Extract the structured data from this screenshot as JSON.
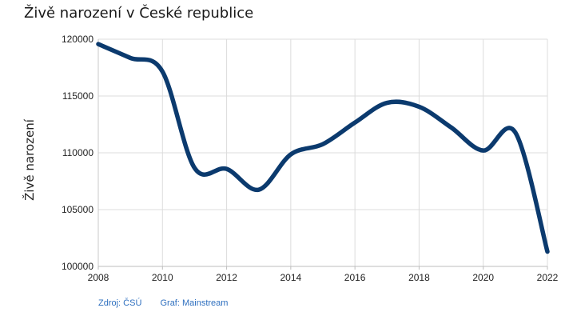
{
  "chart_data": {
    "type": "line",
    "title": "Živě narození v České republice",
    "xlabel": "",
    "ylabel": "Živě narození",
    "x": [
      2008,
      2009,
      2010,
      2011,
      2012,
      2013,
      2014,
      2015,
      2016,
      2017,
      2018,
      2019,
      2020,
      2021,
      2022
    ],
    "series": [
      {
        "values": [
          119570,
          118350,
          117150,
          108670,
          108580,
          106750,
          109860,
          110760,
          112660,
          114400,
          114050,
          112230,
          110200,
          111790,
          101300
        ]
      }
    ],
    "xlim": [
      2008,
      2022
    ],
    "ylim": [
      100000,
      120000
    ],
    "x_ticks": [
      "2008",
      "2010",
      "2012",
      "2014",
      "2016",
      "2018",
      "2020",
      "2022"
    ],
    "y_ticks": [
      "100000",
      "105000",
      "110000",
      "115000",
      "120000"
    ],
    "grid": true,
    "line_color": "#0b3a6e"
  },
  "footer": {
    "source": "Zdroj: ČSÚ",
    "graph": "Graf: Mainstream"
  }
}
